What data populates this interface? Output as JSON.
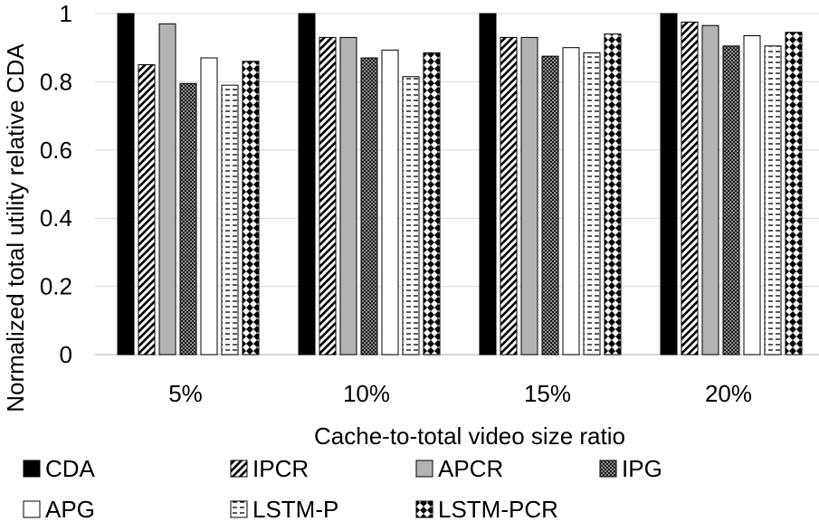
{
  "chart_data": {
    "type": "bar",
    "xlabel": "Cache-to-total video size ratio",
    "ylabel": "Normalized total utility relative CDA",
    "ylim": [
      0,
      1
    ],
    "yticks": [
      "0",
      "0.2",
      "0.4",
      "0.6",
      "0.8",
      "1"
    ],
    "grid": true,
    "legend_position": "bottom",
    "categories": [
      "5%",
      "10%",
      "15%",
      "20%"
    ],
    "series": [
      {
        "name": "CDA",
        "pattern": "solid-black",
        "values": [
          1.0,
          1.0,
          1.0,
          1.0
        ]
      },
      {
        "name": "IPCR",
        "pattern": "diagonal-stripes",
        "values": [
          0.85,
          0.93,
          0.93,
          0.975
        ]
      },
      {
        "name": "APCR",
        "pattern": "solid-gray",
        "values": [
          0.97,
          0.93,
          0.93,
          0.965
        ]
      },
      {
        "name": "IPG",
        "pattern": "dense-checker",
        "values": [
          0.795,
          0.87,
          0.875,
          0.905
        ]
      },
      {
        "name": "APG",
        "pattern": "solid-white",
        "values": [
          0.87,
          0.893,
          0.9,
          0.935
        ]
      },
      {
        "name": "LSTM-P",
        "pattern": "horizontal-dashes",
        "values": [
          0.79,
          0.815,
          0.885,
          0.905
        ]
      },
      {
        "name": "LSTM-PCR",
        "pattern": "diamond-checker",
        "values": [
          0.86,
          0.885,
          0.94,
          0.945
        ]
      }
    ],
    "colors": {
      "axis": "#c8c8c8",
      "grid": "#d9d9d9",
      "black": "#000000",
      "gray": "#b3b3b3"
    }
  }
}
